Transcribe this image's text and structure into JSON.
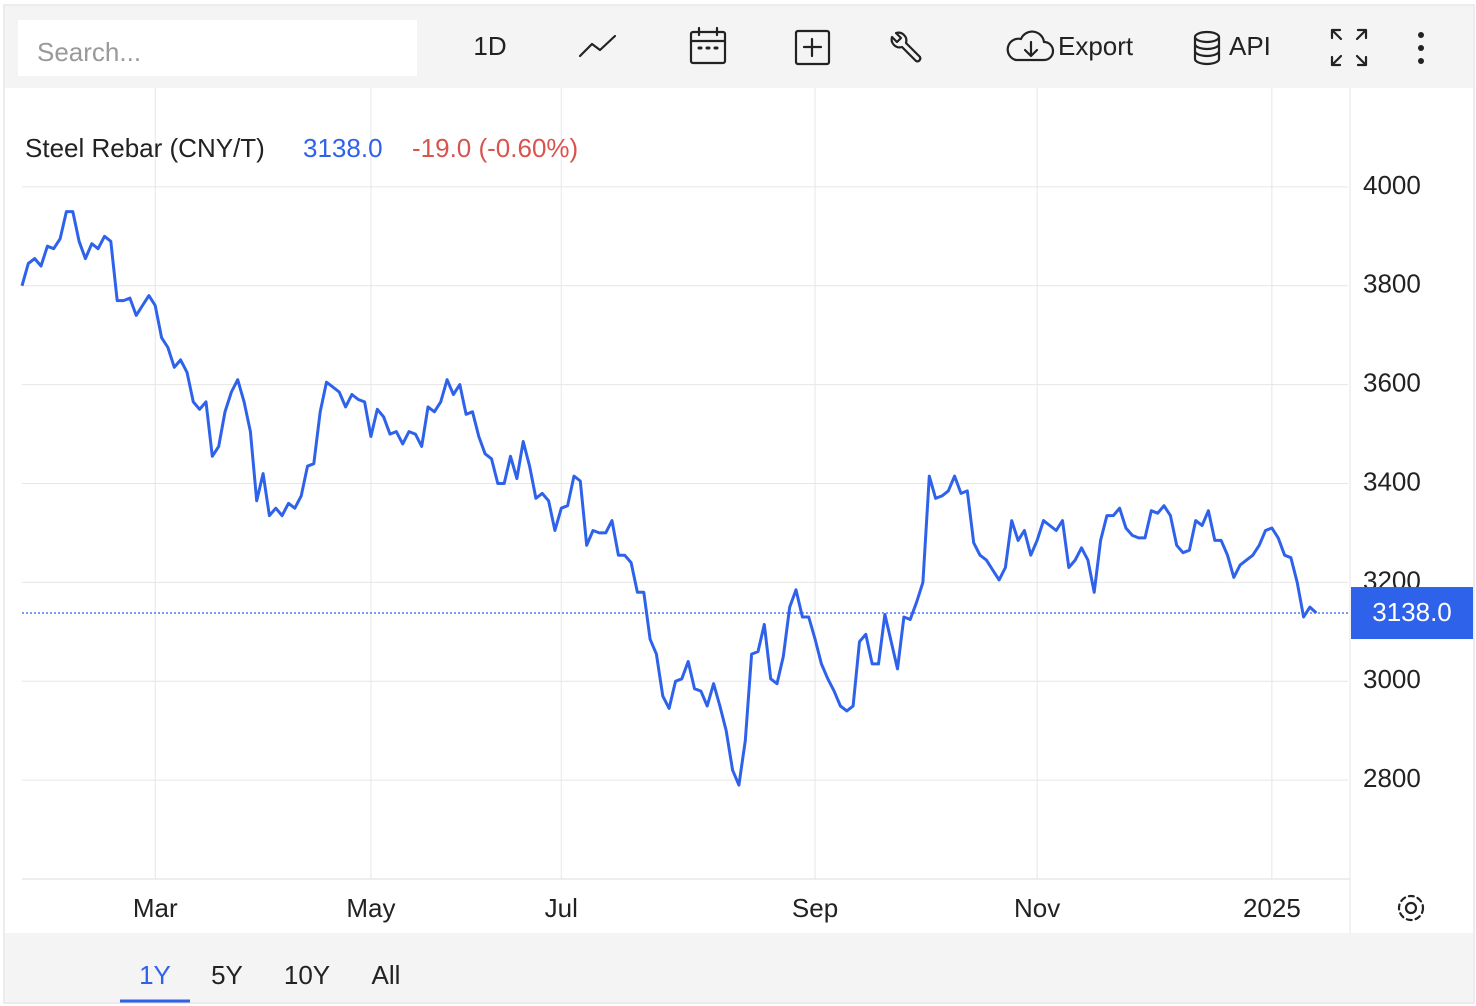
{
  "toolbar": {
    "search_placeholder": "Search...",
    "interval": "1D",
    "export": "Export",
    "api": "API"
  },
  "range_tabs": [
    "1Y",
    "5Y",
    "10Y",
    "All"
  ],
  "chart_data": {
    "type": "line",
    "title": "Steel Rebar (CNY/T)",
    "last_price": {
      "value": 3138,
      "label": "3138.0"
    },
    "change_label": "-19.0 (-0.60%)",
    "color": "#2f62ea",
    "change_color": "#d9534f",
    "grid": true,
    "values": [
      3800,
      3845,
      3855,
      3840,
      3880,
      3875,
      3895,
      3950,
      3950,
      3890,
      3855,
      3885,
      3875,
      3900,
      3890,
      3770,
      3770,
      3775,
      3740,
      3760,
      3780,
      3760,
      3695,
      3675,
      3635,
      3650,
      3625,
      3565,
      3550,
      3565,
      3455,
      3475,
      3545,
      3585,
      3610,
      3565,
      3505,
      3365,
      3420,
      3335,
      3350,
      3335,
      3360,
      3350,
      3375,
      3435,
      3440,
      3545,
      3605,
      3595,
      3585,
      3555,
      3580,
      3570,
      3565,
      3495,
      3550,
      3535,
      3500,
      3505,
      3480,
      3505,
      3500,
      3475,
      3555,
      3545,
      3565,
      3610,
      3580,
      3600,
      3540,
      3545,
      3495,
      3460,
      3450,
      3400,
      3400,
      3455,
      3410,
      3485,
      3435,
      3370,
      3380,
      3365,
      3305,
      3350,
      3355,
      3415,
      3405,
      3275,
      3305,
      3300,
      3300,
      3325,
      3255,
      3255,
      3240,
      3180,
      3180,
      3085,
      3055,
      2970,
      2945,
      3000,
      3005,
      3040,
      2985,
      2980,
      2950,
      2995,
      2950,
      2900,
      2820,
      2790,
      2880,
      3055,
      3060,
      3115,
      3005,
      2995,
      3050,
      3150,
      3185,
      3130,
      3130,
      3085,
      3035,
      3005,
      2980,
      2950,
      2940,
      2950,
      3080,
      3095,
      3035,
      3035,
      3135,
      3080,
      3025,
      3130,
      3125,
      3160,
      3200,
      3415,
      3370,
      3375,
      3385,
      3415,
      3380,
      3385,
      3280,
      3255,
      3245,
      3225,
      3205,
      3230,
      3325,
      3285,
      3305,
      3255,
      3285,
      3325,
      3315,
      3305,
      3325,
      3230,
      3245,
      3270,
      3245,
      3180,
      3285,
      3335,
      3335,
      3350,
      3310,
      3295,
      3290,
      3290,
      3345,
      3340,
      3355,
      3335,
      3275,
      3260,
      3265,
      3325,
      3315,
      3345,
      3285,
      3285,
      3255,
      3210,
      3235,
      3245,
      3255,
      3275,
      3305,
      3310,
      3290,
      3255,
      3250,
      3200,
      3130,
      3150,
      3138
    ],
    "xlim": [
      0,
      209
    ],
    "xticks": [
      {
        "value": 21,
        "label": "Mar"
      },
      {
        "value": 55,
        "label": "May"
      },
      {
        "value": 85,
        "label": "Jul"
      },
      {
        "value": 125,
        "label": "Sep"
      },
      {
        "value": 160,
        "label": "Nov"
      },
      {
        "value": 197,
        "label": "2025"
      }
    ],
    "ylim": [
      2600,
      4200
    ],
    "yticks": [
      2800,
      3000,
      3200,
      3400,
      3600,
      3800,
      4000
    ]
  }
}
